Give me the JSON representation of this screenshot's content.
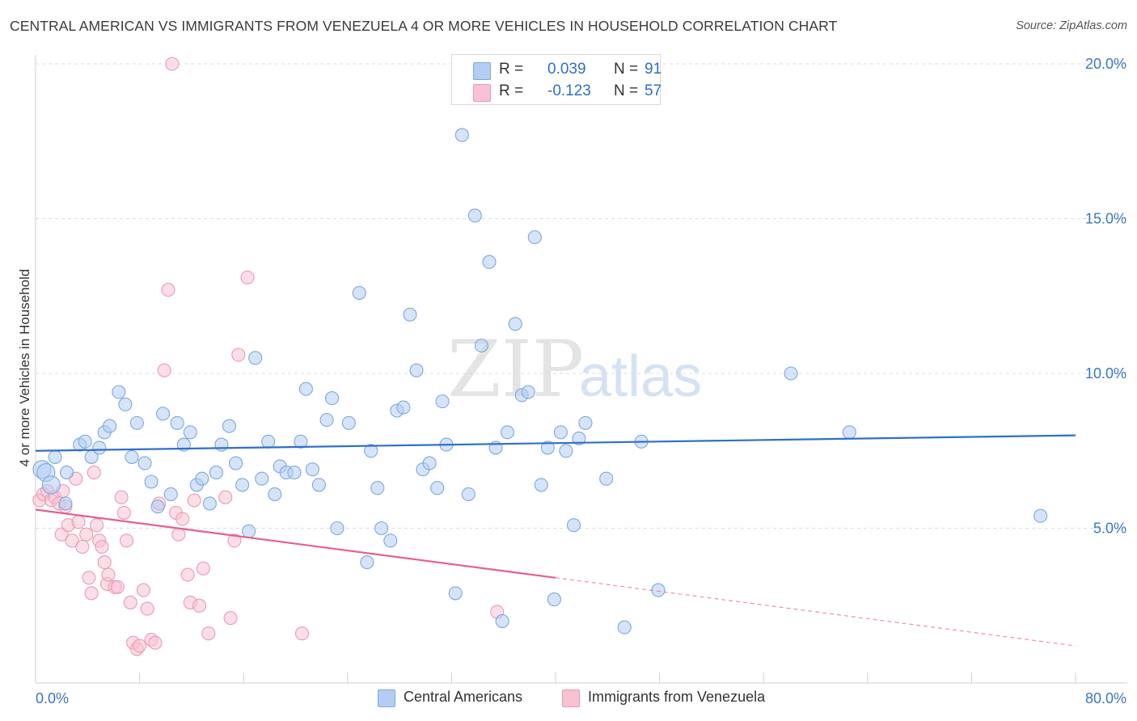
{
  "title": "CENTRAL AMERICAN VS IMMIGRANTS FROM VENEZUELA 4 OR MORE VEHICLES IN HOUSEHOLD CORRELATION CHART",
  "source": "Source: ZipAtlas.com",
  "watermark": {
    "zip": "ZIP",
    "atlas": "atlas"
  },
  "colors": {
    "blue_fill": "#b3cef2",
    "blue_stroke": "#7da8e0",
    "blue_line": "#2f6fc8",
    "pink_fill": "#f7c2d2",
    "pink_stroke": "#eb9ab4",
    "pink_line": "#e4608a",
    "tick_label": "#3a76c8",
    "grid": "#dcdcdc"
  },
  "stats": [
    {
      "r_label": "R =",
      "r_value": "0.039",
      "n_label": "N =",
      "n_value": "91"
    },
    {
      "r_label": "R =",
      "r_value": "-0.123",
      "n_label": "N =",
      "n_value": "57"
    }
  ],
  "legend": [
    "Central Americans",
    "Immigrants from Venezuela"
  ],
  "chart_data": {
    "type": "scatter",
    "title": "CENTRAL AMERICAN VS IMMIGRANTS FROM VENEZUELA 4 OR MORE VEHICLES IN HOUSEHOLD CORRELATION CHART",
    "xlabel": "",
    "ylabel": "4 or more Vehicles in Household",
    "xlim": [
      0,
      80
    ],
    "ylim": [
      0,
      20
    ],
    "x_tick_labels": [
      "0.0%",
      "80.0%"
    ],
    "y_ticks": [
      5,
      10,
      15,
      20
    ],
    "y_tick_labels": [
      "5.0%",
      "10.0%",
      "15.0%",
      "20.0%"
    ],
    "grid": true,
    "legend_position": "bottom",
    "series": [
      {
        "name": "Central Americans",
        "color": "#7da8e0",
        "trend": {
          "x": [
            0,
            80
          ],
          "y": [
            7.5,
            8.0
          ]
        },
        "points": [
          [
            0.5,
            6.9
          ],
          [
            0.8,
            6.8
          ],
          [
            1.2,
            6.4
          ],
          [
            1.5,
            7.3
          ],
          [
            2.4,
            6.8
          ],
          [
            2.3,
            5.8
          ],
          [
            3.4,
            7.7
          ],
          [
            3.8,
            7.8
          ],
          [
            4.3,
            7.3
          ],
          [
            4.9,
            7.6
          ],
          [
            5.3,
            8.1
          ],
          [
            5.7,
            8.3
          ],
          [
            6.4,
            9.4
          ],
          [
            6.9,
            9.0
          ],
          [
            7.4,
            7.3
          ],
          [
            7.8,
            8.4
          ],
          [
            8.4,
            7.1
          ],
          [
            8.9,
            6.5
          ],
          [
            9.4,
            5.7
          ],
          [
            9.8,
            8.7
          ],
          [
            10.4,
            6.1
          ],
          [
            10.9,
            8.4
          ],
          [
            11.4,
            7.7
          ],
          [
            11.9,
            8.1
          ],
          [
            12.4,
            6.4
          ],
          [
            12.8,
            6.6
          ],
          [
            13.4,
            5.8
          ],
          [
            13.9,
            6.8
          ],
          [
            14.3,
            7.7
          ],
          [
            14.9,
            8.3
          ],
          [
            15.4,
            7.1
          ],
          [
            15.9,
            6.4
          ],
          [
            16.4,
            4.9
          ],
          [
            16.9,
            10.5
          ],
          [
            17.4,
            6.6
          ],
          [
            17.9,
            7.8
          ],
          [
            18.4,
            6.1
          ],
          [
            18.8,
            7.0
          ],
          [
            19.3,
            6.8
          ],
          [
            19.9,
            6.8
          ],
          [
            20.4,
            7.8
          ],
          [
            20.8,
            9.5
          ],
          [
            21.3,
            6.9
          ],
          [
            21.8,
            6.4
          ],
          [
            22.4,
            8.5
          ],
          [
            22.8,
            9.2
          ],
          [
            23.2,
            5.0
          ],
          [
            24.1,
            8.4
          ],
          [
            24.9,
            12.6
          ],
          [
            25.5,
            3.9
          ],
          [
            25.8,
            7.5
          ],
          [
            26.3,
            6.3
          ],
          [
            26.6,
            5.0
          ],
          [
            27.3,
            4.6
          ],
          [
            27.8,
            8.8
          ],
          [
            28.3,
            8.9
          ],
          [
            28.8,
            11.9
          ],
          [
            29.3,
            10.1
          ],
          [
            29.8,
            6.9
          ],
          [
            30.3,
            7.1
          ],
          [
            30.9,
            6.3
          ],
          [
            31.3,
            9.1
          ],
          [
            31.6,
            7.7
          ],
          [
            32.3,
            2.9
          ],
          [
            32.8,
            17.7
          ],
          [
            33.3,
            6.1
          ],
          [
            33.8,
            15.1
          ],
          [
            34.3,
            10.9
          ],
          [
            34.9,
            13.6
          ],
          [
            35.4,
            7.6
          ],
          [
            35.9,
            2.0
          ],
          [
            36.3,
            8.1
          ],
          [
            36.9,
            11.6
          ],
          [
            37.4,
            9.3
          ],
          [
            37.9,
            9.4
          ],
          [
            38.4,
            14.4
          ],
          [
            38.9,
            6.4
          ],
          [
            39.4,
            7.6
          ],
          [
            39.9,
            2.7
          ],
          [
            40.4,
            8.1
          ],
          [
            40.8,
            7.5
          ],
          [
            41.4,
            5.1
          ],
          [
            41.8,
            7.9
          ],
          [
            42.3,
            8.4
          ],
          [
            43.9,
            6.6
          ],
          [
            45.3,
            1.8
          ],
          [
            46.6,
            7.8
          ],
          [
            47.9,
            3.0
          ],
          [
            58.1,
            10.0
          ],
          [
            62.6,
            8.1
          ],
          [
            77.3,
            5.4
          ]
        ]
      },
      {
        "name": "Immigrants from Venezuela",
        "color": "#eb9ab4",
        "trend": {
          "x": [
            0,
            40
          ],
          "y": [
            5.6,
            3.4
          ]
        },
        "trend_extension": {
          "x": [
            40,
            80
          ],
          "y": [
            3.4,
            1.2
          ]
        },
        "points": [
          [
            0.3,
            5.9
          ],
          [
            0.6,
            6.1
          ],
          [
            0.9,
            6.2
          ],
          [
            1.2,
            5.9
          ],
          [
            1.5,
            6.0
          ],
          [
            1.8,
            5.8
          ],
          [
            2.0,
            4.8
          ],
          [
            2.1,
            6.2
          ],
          [
            2.3,
            5.7
          ],
          [
            2.5,
            5.1
          ],
          [
            2.8,
            4.6
          ],
          [
            3.1,
            6.6
          ],
          [
            3.3,
            5.2
          ],
          [
            3.6,
            4.4
          ],
          [
            3.9,
            4.8
          ],
          [
            4.1,
            3.4
          ],
          [
            4.3,
            2.9
          ],
          [
            4.5,
            6.8
          ],
          [
            4.7,
            5.1
          ],
          [
            4.9,
            4.6
          ],
          [
            5.1,
            4.4
          ],
          [
            5.3,
            3.9
          ],
          [
            5.5,
            3.2
          ],
          [
            5.6,
            3.5
          ],
          [
            6.1,
            3.1
          ],
          [
            6.3,
            3.1
          ],
          [
            6.6,
            6.0
          ],
          [
            6.8,
            5.5
          ],
          [
            7.0,
            4.6
          ],
          [
            7.3,
            2.6
          ],
          [
            7.5,
            1.3
          ],
          [
            7.8,
            1.1
          ],
          [
            8.0,
            1.2
          ],
          [
            8.3,
            3.0
          ],
          [
            8.6,
            2.4
          ],
          [
            8.9,
            1.4
          ],
          [
            9.2,
            1.3
          ],
          [
            9.5,
            5.8
          ],
          [
            9.9,
            10.1
          ],
          [
            10.2,
            12.7
          ],
          [
            10.5,
            20.0
          ],
          [
            10.8,
            5.5
          ],
          [
            11.0,
            4.8
          ],
          [
            11.3,
            5.3
          ],
          [
            11.7,
            3.5
          ],
          [
            11.9,
            2.6
          ],
          [
            12.2,
            5.9
          ],
          [
            12.6,
            2.5
          ],
          [
            12.9,
            3.7
          ],
          [
            13.3,
            1.6
          ],
          [
            14.6,
            6.0
          ],
          [
            15.0,
            2.1
          ],
          [
            15.3,
            4.6
          ],
          [
            15.6,
            10.6
          ],
          [
            16.3,
            13.1
          ],
          [
            20.5,
            1.6
          ],
          [
            35.5,
            2.3
          ]
        ]
      }
    ]
  }
}
